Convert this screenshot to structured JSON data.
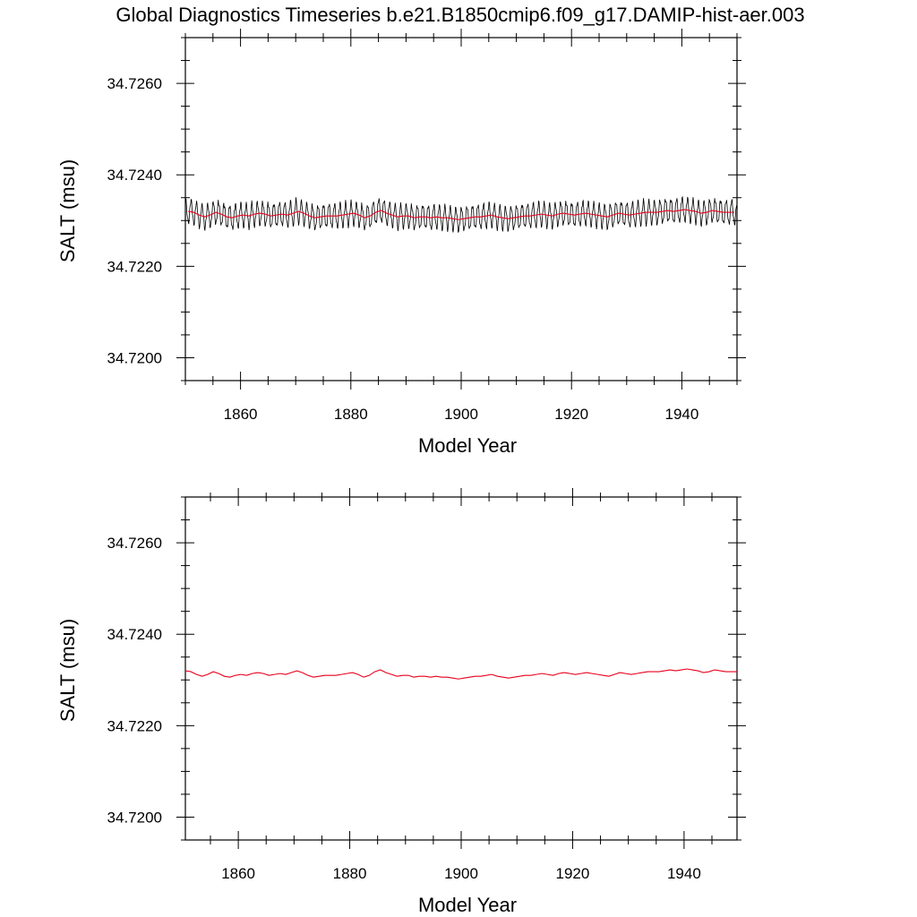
{
  "figure": {
    "title": "Global Diagnostics Timeseries b.e21.B1850cmip6.f09_g17.DAMIP-hist-aer.003"
  },
  "chart_data": [
    {
      "type": "line",
      "xlabel": "Model Year",
      "ylabel": "SALT (msu)",
      "xlim": [
        1850,
        1950
      ],
      "ylim": [
        34.7195,
        34.727
      ],
      "x_ticks": [
        1860,
        1880,
        1900,
        1920,
        1940
      ],
      "x_tick_labels": [
        "1860",
        "1880",
        "1900",
        "1920",
        "1940"
      ],
      "y_ticks": [
        34.72,
        34.722,
        34.724,
        34.726
      ],
      "y_tick_labels": [
        "34.7200",
        "34.7220",
        "34.7240",
        "34.7260"
      ],
      "grid": false,
      "legend": "none",
      "series": [
        {
          "style": "monthly",
          "color": "#000000",
          "x_start": 1850.04,
          "x_step": 0.083333,
          "seasonal_amplitude": 0.00025,
          "annual_mean": [
            34.7232,
            34.72318,
            34.72312,
            34.72308,
            34.72312,
            34.72318,
            34.72314,
            34.72308,
            34.72306,
            34.7231,
            34.72312,
            34.7231,
            34.72314,
            34.72316,
            34.72314,
            34.7231,
            34.72312,
            34.72314,
            34.72312,
            34.72316,
            34.7232,
            34.72316,
            34.7231,
            34.72306,
            34.72308,
            34.7231,
            34.7231,
            34.7231,
            34.72312,
            34.72314,
            34.72316,
            34.72312,
            34.72306,
            34.7231,
            34.72318,
            34.72322,
            34.72316,
            34.72312,
            34.72308,
            34.7231,
            34.7231,
            34.72306,
            34.72308,
            34.72308,
            34.72306,
            34.72308,
            34.72306,
            34.72306,
            34.72304,
            34.72302,
            34.72304,
            34.72306,
            34.72308,
            34.72308,
            34.7231,
            34.72312,
            34.72308,
            34.72306,
            34.72304,
            34.72306,
            34.72308,
            34.7231,
            34.7231,
            34.72312,
            34.72314,
            34.72312,
            34.7231,
            34.72314,
            34.72316,
            34.72314,
            34.72312,
            34.72314,
            34.72316,
            34.72314,
            34.72312,
            34.7231,
            34.72308,
            34.72312,
            34.72316,
            34.72314,
            34.72312,
            34.72314,
            34.72316,
            34.72318,
            34.72318,
            34.72318,
            34.7232,
            34.72322,
            34.7232,
            34.72322,
            34.72324,
            34.72322,
            34.7232,
            34.72316,
            34.72318,
            34.72322,
            34.7232,
            34.72318,
            34.72318,
            34.72318
          ]
        },
        {
          "style": "annual",
          "color": "#e8001c",
          "x": [
            1850.5,
            1851.5,
            1852.5,
            1853.5,
            1854.5,
            1855.5,
            1856.5,
            1857.5,
            1858.5,
            1859.5,
            1860.5,
            1861.5,
            1862.5,
            1863.5,
            1864.5,
            1865.5,
            1866.5,
            1867.5,
            1868.5,
            1869.5,
            1870.5,
            1871.5,
            1872.5,
            1873.5,
            1874.5,
            1875.5,
            1876.5,
            1877.5,
            1878.5,
            1879.5,
            1880.5,
            1881.5,
            1882.5,
            1883.5,
            1884.5,
            1885.5,
            1886.5,
            1887.5,
            1888.5,
            1889.5,
            1890.5,
            1891.5,
            1892.5,
            1893.5,
            1894.5,
            1895.5,
            1896.5,
            1897.5,
            1898.5,
            1899.5,
            1900.5,
            1901.5,
            1902.5,
            1903.5,
            1904.5,
            1905.5,
            1906.5,
            1907.5,
            1908.5,
            1909.5,
            1910.5,
            1911.5,
            1912.5,
            1913.5,
            1914.5,
            1915.5,
            1916.5,
            1917.5,
            1918.5,
            1919.5,
            1920.5,
            1921.5,
            1922.5,
            1923.5,
            1924.5,
            1925.5,
            1926.5,
            1927.5,
            1928.5,
            1929.5,
            1930.5,
            1931.5,
            1932.5,
            1933.5,
            1934.5,
            1935.5,
            1936.5,
            1937.5,
            1938.5,
            1939.5,
            1940.5,
            1941.5,
            1942.5,
            1943.5,
            1944.5,
            1945.5,
            1946.5,
            1947.5,
            1948.5,
            1949.5
          ],
          "y": [
            34.7232,
            34.72318,
            34.72312,
            34.72308,
            34.72312,
            34.72318,
            34.72314,
            34.72308,
            34.72306,
            34.7231,
            34.72312,
            34.7231,
            34.72314,
            34.72316,
            34.72314,
            34.7231,
            34.72312,
            34.72314,
            34.72312,
            34.72316,
            34.7232,
            34.72316,
            34.7231,
            34.72306,
            34.72308,
            34.7231,
            34.7231,
            34.7231,
            34.72312,
            34.72314,
            34.72316,
            34.72312,
            34.72306,
            34.7231,
            34.72318,
            34.72322,
            34.72316,
            34.72312,
            34.72308,
            34.7231,
            34.7231,
            34.72306,
            34.72308,
            34.72308,
            34.72306,
            34.72308,
            34.72306,
            34.72306,
            34.72304,
            34.72302,
            34.72304,
            34.72306,
            34.72308,
            34.72308,
            34.7231,
            34.72312,
            34.72308,
            34.72306,
            34.72304,
            34.72306,
            34.72308,
            34.7231,
            34.7231,
            34.72312,
            34.72314,
            34.72312,
            34.7231,
            34.72314,
            34.72316,
            34.72314,
            34.72312,
            34.72314,
            34.72316,
            34.72314,
            34.72312,
            34.7231,
            34.72308,
            34.72312,
            34.72316,
            34.72314,
            34.72312,
            34.72314,
            34.72316,
            34.72318,
            34.72318,
            34.72318,
            34.7232,
            34.72322,
            34.7232,
            34.72322,
            34.72324,
            34.72322,
            34.7232,
            34.72316,
            34.72318,
            34.72322,
            34.7232,
            34.72318,
            34.72318,
            34.72318
          ]
        }
      ]
    },
    {
      "type": "line",
      "xlabel": "Model Year",
      "ylabel": "SALT (msu)",
      "xlim": [
        1850.5,
        1949.5
      ],
      "ylim": [
        34.7195,
        34.727
      ],
      "x_ticks": [
        1860,
        1880,
        1900,
        1920,
        1940
      ],
      "x_tick_labels": [
        "1860",
        "1880",
        "1900",
        "1920",
        "1940"
      ],
      "y_ticks": [
        34.72,
        34.722,
        34.724,
        34.726
      ],
      "y_tick_labels": [
        "34.7200",
        "34.7220",
        "34.7240",
        "34.7260"
      ],
      "grid": false,
      "legend": "none",
      "series": [
        {
          "style": "annual",
          "color": "#e8001c",
          "x": [
            1850.5,
            1851.5,
            1852.5,
            1853.5,
            1854.5,
            1855.5,
            1856.5,
            1857.5,
            1858.5,
            1859.5,
            1860.5,
            1861.5,
            1862.5,
            1863.5,
            1864.5,
            1865.5,
            1866.5,
            1867.5,
            1868.5,
            1869.5,
            1870.5,
            1871.5,
            1872.5,
            1873.5,
            1874.5,
            1875.5,
            1876.5,
            1877.5,
            1878.5,
            1879.5,
            1880.5,
            1881.5,
            1882.5,
            1883.5,
            1884.5,
            1885.5,
            1886.5,
            1887.5,
            1888.5,
            1889.5,
            1890.5,
            1891.5,
            1892.5,
            1893.5,
            1894.5,
            1895.5,
            1896.5,
            1897.5,
            1898.5,
            1899.5,
            1900.5,
            1901.5,
            1902.5,
            1903.5,
            1904.5,
            1905.5,
            1906.5,
            1907.5,
            1908.5,
            1909.5,
            1910.5,
            1911.5,
            1912.5,
            1913.5,
            1914.5,
            1915.5,
            1916.5,
            1917.5,
            1918.5,
            1919.5,
            1920.5,
            1921.5,
            1922.5,
            1923.5,
            1924.5,
            1925.5,
            1926.5,
            1927.5,
            1928.5,
            1929.5,
            1930.5,
            1931.5,
            1932.5,
            1933.5,
            1934.5,
            1935.5,
            1936.5,
            1937.5,
            1938.5,
            1939.5,
            1940.5,
            1941.5,
            1942.5,
            1943.5,
            1944.5,
            1945.5,
            1946.5,
            1947.5,
            1948.5,
            1949.5
          ],
          "y": [
            34.7232,
            34.72318,
            34.72312,
            34.72308,
            34.72312,
            34.72318,
            34.72314,
            34.72308,
            34.72306,
            34.7231,
            34.72312,
            34.7231,
            34.72314,
            34.72316,
            34.72314,
            34.7231,
            34.72312,
            34.72314,
            34.72312,
            34.72316,
            34.7232,
            34.72316,
            34.7231,
            34.72306,
            34.72308,
            34.7231,
            34.7231,
            34.7231,
            34.72312,
            34.72314,
            34.72316,
            34.72312,
            34.72306,
            34.7231,
            34.72318,
            34.72322,
            34.72316,
            34.72312,
            34.72308,
            34.7231,
            34.7231,
            34.72306,
            34.72308,
            34.72308,
            34.72306,
            34.72308,
            34.72306,
            34.72306,
            34.72304,
            34.72302,
            34.72304,
            34.72306,
            34.72308,
            34.72308,
            34.7231,
            34.72312,
            34.72308,
            34.72306,
            34.72304,
            34.72306,
            34.72308,
            34.7231,
            34.7231,
            34.72312,
            34.72314,
            34.72312,
            34.7231,
            34.72314,
            34.72316,
            34.72314,
            34.72312,
            34.72314,
            34.72316,
            34.72314,
            34.72312,
            34.7231,
            34.72308,
            34.72312,
            34.72316,
            34.72314,
            34.72312,
            34.72314,
            34.72316,
            34.72318,
            34.72318,
            34.72318,
            34.7232,
            34.72322,
            34.7232,
            34.72322,
            34.72324,
            34.72322,
            34.7232,
            34.72316,
            34.72318,
            34.72322,
            34.7232,
            34.72318,
            34.72318,
            34.72318
          ]
        }
      ]
    }
  ]
}
